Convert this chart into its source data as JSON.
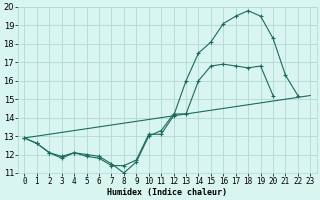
{
  "xlabel": "Humidex (Indice chaleur)",
  "bg_color": "#d9f5f0",
  "grid_color": "#b2d8d2",
  "line_color": "#1a6b5a",
  "xlim": [
    -0.5,
    23.5
  ],
  "ylim": [
    11,
    20
  ],
  "xticks": [
    0,
    1,
    2,
    3,
    4,
    5,
    6,
    7,
    8,
    9,
    10,
    11,
    12,
    13,
    14,
    15,
    16,
    17,
    18,
    19,
    20,
    21,
    22,
    23
  ],
  "yticks": [
    11,
    12,
    13,
    14,
    15,
    16,
    17,
    18,
    19,
    20
  ],
  "line1_x": [
    0,
    1,
    2,
    3,
    4,
    5,
    6,
    7,
    8,
    9,
    10,
    11,
    12,
    13,
    14,
    15,
    16,
    17,
    18,
    19,
    20,
    21,
    22
  ],
  "line1_y": [
    12.9,
    12.6,
    12.1,
    11.8,
    12.1,
    11.9,
    11.8,
    11.4,
    11.4,
    11.7,
    13.1,
    13.1,
    14.1,
    16.0,
    17.5,
    18.1,
    19.1,
    19.5,
    19.8,
    19.5,
    18.3,
    16.3,
    15.2
  ],
  "line2_x": [
    0,
    1,
    2,
    3,
    4,
    5,
    6,
    7,
    8,
    9,
    10,
    11,
    12,
    13,
    14,
    15,
    16,
    17,
    18,
    19,
    20
  ],
  "line2_y": [
    12.9,
    12.6,
    12.1,
    11.9,
    12.1,
    12.0,
    11.9,
    11.5,
    11.0,
    11.6,
    13.0,
    13.3,
    14.2,
    14.2,
    16.0,
    16.8,
    16.9,
    16.8,
    16.7,
    16.8,
    15.2
  ],
  "line3_x": [
    0,
    23
  ],
  "line3_y": [
    12.9,
    15.2
  ],
  "xlabel_fontsize": 6,
  "tick_fontsize": 5.5
}
